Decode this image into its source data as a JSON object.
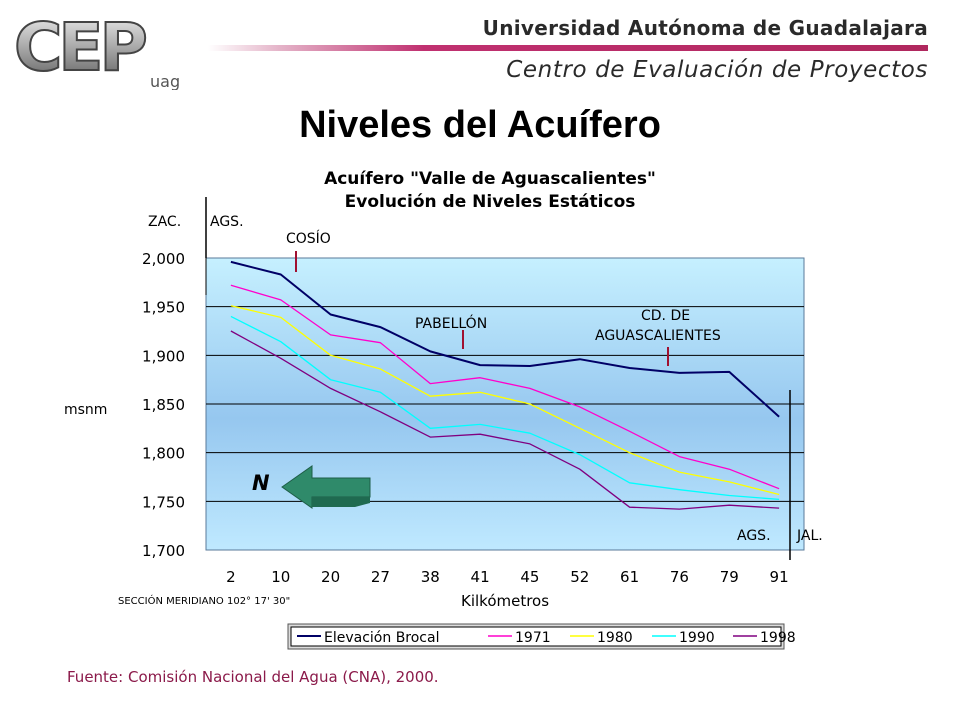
{
  "header": {
    "university": "Universidad Autónoma de Guadalajara",
    "center": "Centro de Evaluación de Proyectos",
    "logo_text": "CEP",
    "logo_sub": "uag",
    "accent_color": "#b0285e"
  },
  "slide_title": "Niveles del Acuífero",
  "source": "Fuente: Comisión Nacional del Agua (CNA), 2000.",
  "chart_data": {
    "type": "line",
    "title_line1": "Acuífero \"Valle de Aguascalientes\"",
    "title_line2": "Evolución de Niveles Estáticos",
    "xlabel": "Kilkómetros",
    "ylabel": "msnm",
    "section_note": "SECCIÓN MERIDIANO 102° 17' 30\"",
    "categories": [
      "2",
      "10",
      "20",
      "27",
      "38",
      "41",
      "45",
      "52",
      "61",
      "76",
      "79",
      "91"
    ],
    "ylim": [
      1700,
      2000
    ],
    "yticks": [
      2000,
      1950,
      1900,
      1850,
      1800,
      1750,
      1700
    ],
    "ytick_labels": [
      "2,000",
      "1,950",
      "1,900",
      "1,850",
      "1,800",
      "1,750",
      "1,700"
    ],
    "grid": true,
    "legend_position": "bottom",
    "series": [
      {
        "name": "Elevación  Brocal",
        "color": "#000066",
        "values": [
          1996,
          1983,
          1942,
          1929,
          1904,
          1890,
          1889,
          1896,
          1887,
          1882,
          1883,
          1837
        ]
      },
      {
        "name": "1971",
        "color": "#ff00cc",
        "values": [
          1972,
          1957,
          1921,
          1913,
          1871,
          1877,
          1866,
          1847,
          1822,
          1796,
          1783,
          1763
        ]
      },
      {
        "name": "1980",
        "color": "#ffff00",
        "values": [
          1951,
          1939,
          1900,
          1886,
          1858,
          1862,
          1850,
          1825,
          1800,
          1780,
          1770,
          1757
        ]
      },
      {
        "name": "1990",
        "color": "#00ffff",
        "values": [
          1940,
          1914,
          1875,
          1862,
          1825,
          1829,
          1820,
          1798,
          1769,
          1762,
          1756,
          1752
        ]
      },
      {
        "name": "1998",
        "color": "#800080",
        "values": [
          1925,
          1897,
          1866,
          1842,
          1816,
          1819,
          1809,
          1783,
          1744,
          1742,
          1746,
          1743
        ]
      }
    ],
    "annotations": {
      "zac": "ZAC.",
      "ags_top": "AGS.",
      "cosio": "COSÍO",
      "pabellon": "PABELLÓN",
      "cd_line1": "CD. DE",
      "cd_line2": "AGUASCALIENTES",
      "ags_bottom": "AGS.",
      "jal": "JAL.",
      "north": "N"
    }
  }
}
